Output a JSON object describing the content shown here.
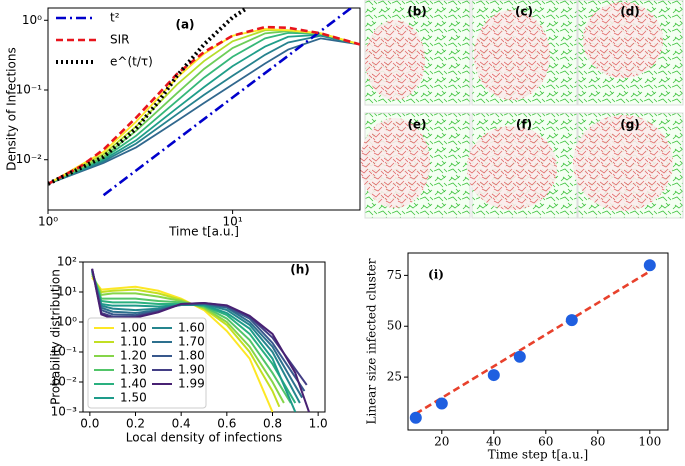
{
  "chart_data": [
    {
      "type": "line",
      "panel_label": "(a)",
      "ylabel": "Density of Infections",
      "xlabel": "Time t[a.u.]",
      "xscale": "log",
      "yscale": "log",
      "xlim": [
        1,
        49
      ],
      "ylim": [
        0.0019,
        1.5
      ],
      "xticks": [
        {
          "value": 1,
          "label": "10⁰"
        },
        {
          "value": 10,
          "label": "10¹"
        }
      ],
      "yticks": [
        {
          "value": 0.01,
          "label": "10⁻²"
        },
        {
          "value": 0.1,
          "label": "10⁻¹"
        },
        {
          "value": 1,
          "label": "10⁰"
        }
      ],
      "legend": "upper left",
      "series": [
        {
          "color": "#31688e",
          "style": "solid",
          "x": [
            1,
            2,
            3,
            5,
            7,
            10,
            15,
            20,
            30,
            49
          ],
          "values": [
            0.0045,
            0.009,
            0.015,
            0.036,
            0.065,
            0.12,
            0.24,
            0.38,
            0.55,
            0.45
          ]
        },
        {
          "color": "#26828e",
          "style": "solid",
          "x": [
            1,
            2,
            3,
            5,
            7,
            10,
            15,
            20,
            30,
            49
          ],
          "values": [
            0.0045,
            0.0095,
            0.017,
            0.045,
            0.085,
            0.16,
            0.32,
            0.48,
            0.6,
            0.45
          ]
        },
        {
          "color": "#1f9e89",
          "style": "solid",
          "x": [
            1,
            2,
            3,
            5,
            7,
            10,
            15,
            20,
            30,
            49
          ],
          "values": [
            0.0045,
            0.01,
            0.019,
            0.055,
            0.11,
            0.22,
            0.42,
            0.58,
            0.62,
            0.45
          ]
        },
        {
          "color": "#35b779",
          "style": "solid",
          "x": [
            1,
            2,
            3,
            5,
            7,
            10,
            15,
            20,
            30,
            49
          ],
          "values": [
            0.0045,
            0.0105,
            0.022,
            0.07,
            0.15,
            0.3,
            0.55,
            0.66,
            0.64,
            0.45
          ]
        },
        {
          "color": "#6ece58",
          "style": "solid",
          "x": [
            1,
            2,
            3,
            5,
            7,
            10,
            15,
            20,
            30,
            49
          ],
          "values": [
            0.0045,
            0.011,
            0.026,
            0.09,
            0.2,
            0.4,
            0.65,
            0.7,
            0.64,
            0.45
          ]
        },
        {
          "color": "#b5de2b",
          "style": "solid",
          "x": [
            1,
            2,
            3,
            5,
            7,
            10,
            15,
            20,
            30,
            49
          ],
          "values": [
            0.0045,
            0.012,
            0.03,
            0.12,
            0.26,
            0.5,
            0.72,
            0.72,
            0.65,
            0.45
          ]
        },
        {
          "color": "#fde725",
          "style": "solid",
          "x": [
            1,
            2,
            3,
            5,
            7,
            10,
            15,
            20,
            30,
            49
          ],
          "values": [
            0.0045,
            0.013,
            0.035,
            0.15,
            0.33,
            0.6,
            0.75,
            0.72,
            0.65,
            0.45
          ]
        },
        {
          "name": "t²",
          "color": "#0000cc",
          "style": "dashdot",
          "x": [
            2,
            5,
            10,
            20,
            30,
            49
          ],
          "values": [
            0.0031,
            0.0195,
            0.078,
            0.31,
            0.7,
            1.87
          ]
        },
        {
          "name": "SIR",
          "color": "#e8141c",
          "style": "dashed",
          "x": [
            1,
            1.5,
            2,
            3,
            4,
            5,
            7,
            10,
            15,
            20,
            30,
            49
          ],
          "values": [
            0.0045,
            0.008,
            0.014,
            0.04,
            0.09,
            0.17,
            0.35,
            0.6,
            0.8,
            0.78,
            0.65,
            0.45
          ]
        },
        {
          "name": "e^(t/τ)",
          "color": "#000000",
          "style": "dotted",
          "x": [
            1,
            2,
            3,
            4,
            5,
            7,
            10,
            12
          ],
          "values": [
            0.0045,
            0.011,
            0.028,
            0.07,
            0.16,
            0.45,
            1.1,
            1.5
          ]
        }
      ]
    },
    {
      "type": "line",
      "panel_label": "(h)",
      "ylabel": "Probability distribution",
      "xlabel": "Local density of infections",
      "xscale": "linear",
      "yscale": "log",
      "xlim": [
        -0.03,
        1.03
      ],
      "ylim": [
        0.001,
        100
      ],
      "xticks": [
        {
          "value": 0,
          "label": "0.0"
        },
        0.2,
        0.4,
        0.6,
        0.8,
        {
          "value": 1,
          "label": "1.0"
        }
      ],
      "yticks": [
        {
          "value": 0.001,
          "label": "10⁻³"
        },
        {
          "value": 0.01,
          "label": "10⁻²"
        },
        {
          "value": 0.1,
          "label": "10⁻¹"
        },
        {
          "value": 1,
          "label": "10⁰"
        },
        {
          "value": 10,
          "label": "10¹"
        },
        {
          "value": 100,
          "label": "10²"
        }
      ],
      "legend": "lower left",
      "series": [
        {
          "name": "1.00",
          "color": "#fde725",
          "style": "solid",
          "x": [
            0.01,
            0.05,
            0.1,
            0.2,
            0.3,
            0.4,
            0.5,
            0.6,
            0.7,
            0.8
          ],
          "values": [
            30,
            12,
            13,
            15,
            11,
            6,
            2.5,
            0.5,
            0.06,
            0.001
          ]
        },
        {
          "name": "1.10",
          "color": "#c2df23",
          "style": "solid",
          "x": [
            0.01,
            0.05,
            0.1,
            0.2,
            0.3,
            0.4,
            0.5,
            0.6,
            0.7,
            0.8,
            0.83
          ],
          "values": [
            35,
            10,
            11,
            12,
            9,
            5.5,
            2.8,
            0.8,
            0.1,
            0.005,
            0.0015
          ]
        },
        {
          "name": "1.20",
          "color": "#86d549",
          "style": "solid",
          "x": [
            0.01,
            0.05,
            0.1,
            0.2,
            0.3,
            0.4,
            0.5,
            0.6,
            0.7,
            0.8,
            0.85
          ],
          "values": [
            40,
            8,
            9,
            9,
            7,
            5,
            3,
            1,
            0.15,
            0.01,
            0.002
          ]
        },
        {
          "name": "1.30",
          "color": "#52c569",
          "style": "solid",
          "x": [
            0.01,
            0.05,
            0.1,
            0.2,
            0.3,
            0.4,
            0.5,
            0.6,
            0.7,
            0.8,
            0.88
          ],
          "values": [
            45,
            6,
            6,
            6,
            5,
            4.5,
            3.3,
            1.3,
            0.25,
            0.02,
            0.002
          ]
        },
        {
          "name": "1.40",
          "color": "#2ab07f",
          "style": "solid",
          "x": [
            0.01,
            0.05,
            0.1,
            0.2,
            0.3,
            0.4,
            0.5,
            0.6,
            0.7,
            0.8,
            0.9
          ],
          "values": [
            48,
            5,
            4.5,
            4.5,
            4,
            4,
            3.5,
            1.7,
            0.4,
            0.04,
            0.002
          ]
        },
        {
          "name": "1.50",
          "color": "#1e9b8a",
          "style": "solid",
          "x": [
            0.01,
            0.05,
            0.1,
            0.2,
            0.3,
            0.4,
            0.5,
            0.6,
            0.7,
            0.8,
            0.9
          ],
          "values": [
            50,
            4,
            3.5,
            3.5,
            3.3,
            3.7,
            3.7,
            2,
            0.6,
            0.06,
            0.001
          ]
        },
        {
          "name": "1.60",
          "color": "#25858e",
          "style": "solid",
          "x": [
            0.01,
            0.05,
            0.1,
            0.2,
            0.3,
            0.4,
            0.5,
            0.6,
            0.7,
            0.8,
            0.92
          ],
          "values": [
            52,
            3.5,
            2.8,
            2.5,
            2.8,
            3.7,
            4,
            2.5,
            0.8,
            0.1,
            0.002
          ]
        },
        {
          "name": "1.70",
          "color": "#2d708e",
          "style": "solid",
          "x": [
            0.01,
            0.05,
            0.1,
            0.2,
            0.3,
            0.4,
            0.5,
            0.6,
            0.7,
            0.8,
            0.93
          ],
          "values": [
            55,
            3,
            2.2,
            2,
            2.5,
            3.8,
            4,
            3,
            1,
            0.15,
            0.003
          ]
        },
        {
          "name": "1.80",
          "color": "#38588c",
          "style": "solid",
          "x": [
            0.01,
            0.05,
            0.1,
            0.2,
            0.3,
            0.4,
            0.5,
            0.6,
            0.7,
            0.8,
            0.94
          ],
          "values": [
            57,
            2.5,
            1.8,
            1.7,
            2.3,
            3.9,
            4.2,
            3.2,
            1.3,
            0.2,
            0.005
          ]
        },
        {
          "name": "1.90",
          "color": "#433e85",
          "style": "solid",
          "x": [
            0.01,
            0.05,
            0.1,
            0.2,
            0.3,
            0.4,
            0.5,
            0.6,
            0.7,
            0.8,
            0.95
          ],
          "values": [
            58,
            2,
            1.5,
            1.5,
            2.2,
            4,
            4.3,
            3.5,
            1.5,
            0.3,
            0.008
          ]
        },
        {
          "name": "1.99",
          "color": "#482173",
          "style": "solid",
          "x": [
            0.01,
            0.05,
            0.1,
            0.2,
            0.3,
            0.4,
            0.5,
            0.6,
            0.7,
            0.8,
            0.9,
            0.96
          ],
          "values": [
            60,
            1.8,
            1.3,
            1.4,
            2.1,
            4,
            4.3,
            3.6,
            1.6,
            0.4,
            0.02,
            0.001
          ]
        }
      ]
    },
    {
      "type": "scatter",
      "panel_label": "(i)",
      "ylabel": "Linear size infected cluster",
      "xlabel": "Time step t[a.u.]",
      "xscale": "linear",
      "yscale": "linear",
      "xlim": [
        7,
        107
      ],
      "ylim": [
        -1,
        86
      ],
      "xticks": [
        20,
        40,
        60,
        80,
        100
      ],
      "yticks": [
        25,
        50,
        75
      ],
      "series": [
        {
          "color": "#e8412c",
          "style": "dashed",
          "x": [
            10,
            100
          ],
          "values": [
            7,
            77
          ]
        },
        {
          "color": "#1f5fe0",
          "marker": "circle",
          "x": [
            10,
            20,
            40,
            50,
            70,
            100
          ],
          "values": [
            5,
            12,
            26,
            35,
            53,
            80
          ]
        }
      ]
    }
  ],
  "image_panels": {
    "labels": [
      "(b)",
      "(c)",
      "(d)",
      "(e)",
      "(f)",
      "(g)"
    ]
  }
}
